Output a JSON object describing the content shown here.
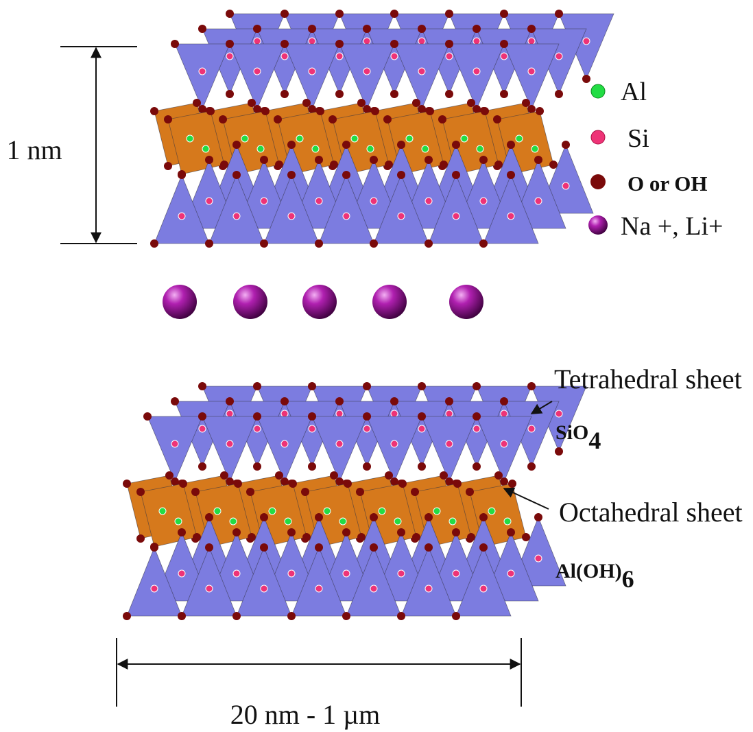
{
  "dimensions": {
    "thickness": "1 nm",
    "lateral": "20 nm - 1 µm"
  },
  "legend": [
    {
      "label": "Al"
    },
    {
      "label": "Si"
    },
    {
      "label": "O or OH"
    },
    {
      "label": "Na +, Li+"
    }
  ],
  "annotations": [
    {
      "label": "Tetrahedral sheet",
      "formula": {
        "base": "SiO",
        "sub": "4"
      }
    },
    {
      "label": "Octahedral sheet",
      "formula": {
        "base": "Al(OH)",
        "sub": "6"
      }
    }
  ]
}
